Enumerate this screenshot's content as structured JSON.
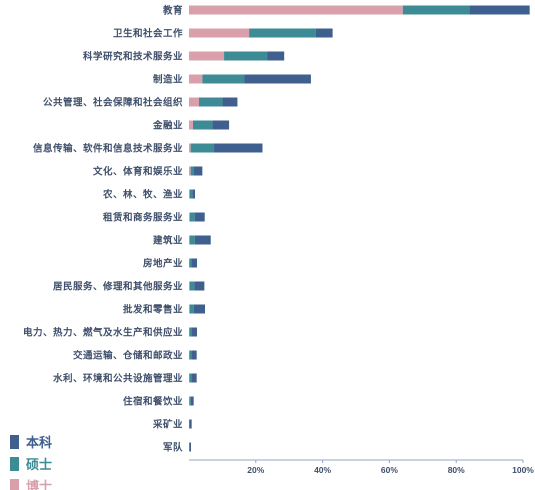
{
  "colors": {
    "bachelor": "#3f5f8e",
    "master": "#3d8b94",
    "doctor": "#d9a0ab",
    "axis": "#8fa6c6",
    "text": "#3f4f6b"
  },
  "legend": [
    {
      "key": "bachelor",
      "label": "本科"
    },
    {
      "key": "master",
      "label": "硕士"
    },
    {
      "key": "doctor",
      "label": "博士"
    }
  ],
  "chart_data": {
    "type": "bar",
    "orientation": "horizontal",
    "stacked": true,
    "title": "",
    "xlabel": "",
    "ylabel": "",
    "xlim": [
      0,
      1.0
    ],
    "xticks": [
      "20%",
      "40%",
      "60%",
      "80%",
      "100%"
    ],
    "grid": false,
    "legend_position": "bottom-left",
    "categories": [
      "教育",
      "卫生和社会工作",
      "科学研究和技术服务业",
      "制造业",
      "公共管理、社会保障和社会组织",
      "金融业",
      "信息传输、软件和信息技术服务业",
      "文化、体育和娱乐业",
      "农、林、牧、渔业",
      "租赁和商务服务业",
      "建筑业",
      "房地产业",
      "居民服务、修理和其他服务业",
      "批发和零售业",
      "电力、热力、燃气及水生产和供应业",
      "交通运输、仓储和邮政业",
      "水利、环境和公共设施管理业",
      "住宿和餐饮业",
      "采矿业",
      "军队"
    ],
    "series": [
      {
        "name": "博士",
        "key": "doctor",
        "values": [
          0.64,
          0.18,
          0.105,
          0.04,
          0.03,
          0.012,
          0.005,
          0.005,
          0.002,
          0.003,
          0.002,
          0.001,
          0.002,
          0.002,
          0.001,
          0.001,
          0.001,
          0.001,
          0.0,
          0.0
        ]
      },
      {
        "name": "硕士",
        "key": "master",
        "values": [
          0.2,
          0.2,
          0.13,
          0.125,
          0.07,
          0.058,
          0.07,
          0.01,
          0.008,
          0.014,
          0.015,
          0.006,
          0.014,
          0.012,
          0.008,
          0.008,
          0.008,
          0.004,
          0.003,
          0.002
        ]
      },
      {
        "name": "本科",
        "key": "bachelor",
        "values": [
          0.18,
          0.05,
          0.05,
          0.2,
          0.045,
          0.05,
          0.145,
          0.025,
          0.008,
          0.03,
          0.048,
          0.017,
          0.03,
          0.034,
          0.015,
          0.014,
          0.014,
          0.009,
          0.005,
          0.004
        ]
      }
    ]
  }
}
